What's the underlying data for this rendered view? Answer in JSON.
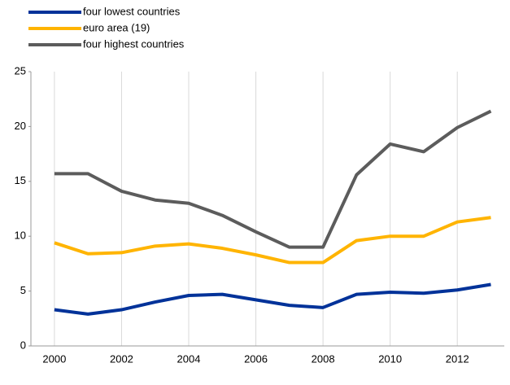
{
  "chart_data": {
    "type": "line",
    "x": [
      2000,
      2001,
      2002,
      2003,
      2004,
      2005,
      2006,
      2007,
      2008,
      2009,
      2010,
      2011,
      2012,
      2013
    ],
    "series": [
      {
        "name": "four lowest countries",
        "color": "#003299",
        "values": [
          3.3,
          2.9,
          3.3,
          4.0,
          4.6,
          4.7,
          4.2,
          3.7,
          3.5,
          4.7,
          4.9,
          4.8,
          5.1,
          5.6
        ]
      },
      {
        "name": "euro area (19)",
        "color": "#ffb400",
        "values": [
          9.4,
          8.4,
          8.5,
          9.1,
          9.3,
          8.9,
          8.3,
          7.6,
          7.6,
          9.6,
          10.0,
          10.0,
          11.3,
          11.7
        ]
      },
      {
        "name": "four highest countries",
        "color": "#5c5c5c",
        "values": [
          15.7,
          15.7,
          14.1,
          13.3,
          13.0,
          11.9,
          10.4,
          9.0,
          9.0,
          15.6,
          18.4,
          17.7,
          19.9,
          21.4
        ]
      }
    ],
    "xlim": [
      1999.3,
      2013.4
    ],
    "xticks": [
      2000,
      2002,
      2004,
      2006,
      2008,
      2010,
      2012
    ],
    "ylim": [
      0,
      25
    ],
    "yticks": [
      0,
      5,
      10,
      15,
      20,
      25
    ],
    "grid": true,
    "legend": "top-left"
  }
}
